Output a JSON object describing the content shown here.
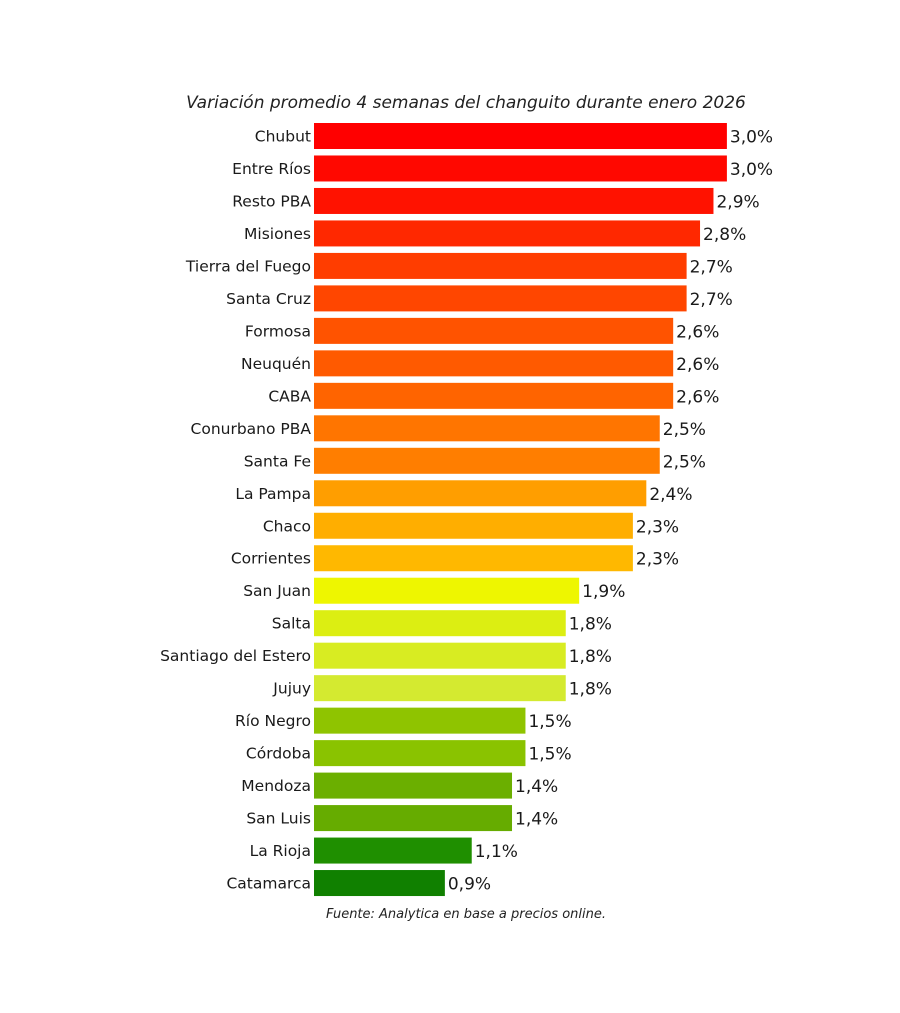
{
  "chart_data": {
    "type": "bar",
    "orientation": "horizontal",
    "title": "Variación promedio 4 semanas del changuito durante enero 2026",
    "source": "Fuente: Analytica en base a precios online.",
    "categories": [
      "Chubut",
      "Entre Ríos",
      "Resto PBA",
      "Misiones",
      "Tierra del Fuego",
      "Santa Cruz",
      "Formosa",
      "Neuquén",
      "CABA",
      "Conurbano PBA",
      "Santa Fe",
      "La Pampa",
      "Chaco",
      "Corrientes",
      "San Juan",
      "Salta",
      "Santiago del Estero",
      "Jujuy",
      "Río Negro",
      "Córdoba",
      "Mendoza",
      "San Luis",
      "La Rioja",
      "Catamarca"
    ],
    "values": [
      3.0,
      3.0,
      2.9,
      2.8,
      2.7,
      2.7,
      2.6,
      2.6,
      2.6,
      2.5,
      2.5,
      2.4,
      2.3,
      2.3,
      1.9,
      1.8,
      1.8,
      1.8,
      1.5,
      1.5,
      1.4,
      1.4,
      1.1,
      0.9
    ],
    "labels": [
      "3,0%",
      "3,0%",
      "2,9%",
      "2,8%",
      "2,7%",
      "2,7%",
      "2,6%",
      "2,6%",
      "2,6%",
      "2,5%",
      "2,5%",
      "2,4%",
      "2,3%",
      "2,3%",
      "1,9%",
      "1,8%",
      "1,8%",
      "1,8%",
      "1,5%",
      "1,5%",
      "1,4%",
      "1,4%",
      "1,1%",
      "0,9%"
    ],
    "colors": [
      "#ff0000",
      "#ff0800",
      "#ff1200",
      "#ff2800",
      "#ff3d00",
      "#ff4600",
      "#ff5300",
      "#ff5a00",
      "#ff6400",
      "#ff7500",
      "#ff7e00",
      "#ff9e00",
      "#ffae00",
      "#ffb800",
      "#eef600",
      "#dcee12",
      "#d8ec22",
      "#d4ea30",
      "#8fc400",
      "#8ac300",
      "#6baf00",
      "#66ac00",
      "#1f8f00",
      "#108000"
    ],
    "xlabel": "",
    "ylabel": "",
    "grid": false,
    "legend": "none"
  }
}
